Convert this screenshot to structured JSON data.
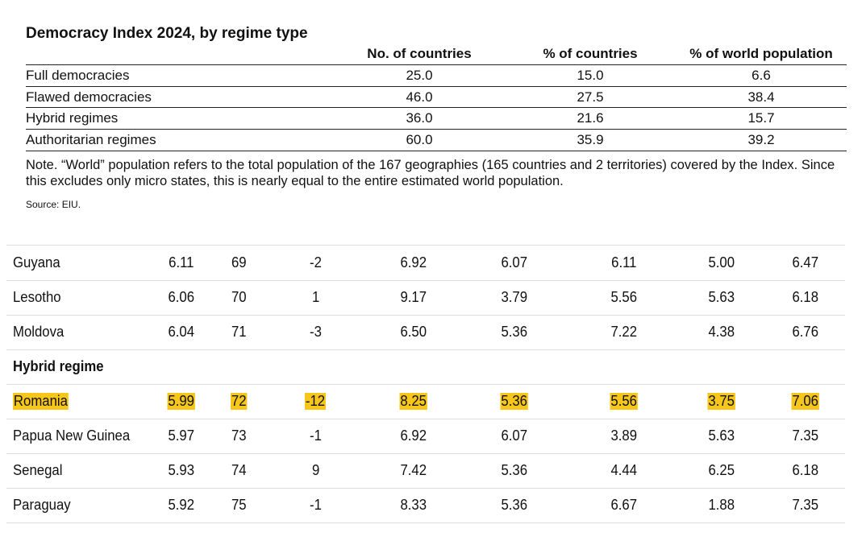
{
  "summary": {
    "title": "Democracy Index 2024, by regime type",
    "headers": [
      "No. of countries",
      "% of countries",
      "% of world population"
    ],
    "rows": [
      {
        "label": "Full democracies",
        "cells": [
          "25.0",
          "15.0",
          "6.6"
        ]
      },
      {
        "label": "Flawed democracies",
        "cells": [
          "46.0",
          "27.5",
          "38.4"
        ]
      },
      {
        "label": "Hybrid regimes",
        "cells": [
          "36.0",
          "21.6",
          "15.7"
        ]
      },
      {
        "label": "Authoritarian regimes",
        "cells": [
          "60.0",
          "35.9",
          "39.2"
        ]
      }
    ]
  },
  "note": "Note. “World” population refers to the total population of the 167 geographies (165 countries and 2 territories) covered by the Index. Since this excludes only micro states, this is nearly equal to the entire estimated world population.",
  "source": "Source: EIU.",
  "scores": {
    "rows": [
      {
        "cells": [
          "Guyana",
          "6.11",
          "69",
          "-2",
          "6.92",
          "6.07",
          "6.11",
          "5.00",
          "6.47"
        ]
      },
      {
        "cells": [
          "Lesotho",
          "6.06",
          "70",
          "1",
          "9.17",
          "3.79",
          "5.56",
          "5.63",
          "6.18"
        ]
      },
      {
        "cells": [
          "Moldova",
          "6.04",
          "71",
          "-3",
          "6.50",
          "5.36",
          "7.22",
          "4.38",
          "6.76"
        ]
      },
      {
        "section": "Hybrid regime"
      },
      {
        "cells": [
          "Romania",
          "5.99",
          "72",
          "-12",
          "8.25",
          "5.36",
          "5.56",
          "3.75",
          "7.06"
        ],
        "highlight": true
      },
      {
        "cells": [
          "Papua New Guinea",
          "5.97",
          "73",
          "-1",
          "6.92",
          "6.07",
          "3.89",
          "5.63",
          "7.35"
        ]
      },
      {
        "cells": [
          "Senegal",
          "5.93",
          "74",
          "9",
          "7.42",
          "5.36",
          "4.44",
          "6.25",
          "6.18"
        ]
      },
      {
        "cells": [
          "Paraguay",
          "5.92",
          "75",
          "-1",
          "8.33",
          "5.36",
          "6.67",
          "1.88",
          "7.35"
        ]
      }
    ]
  }
}
